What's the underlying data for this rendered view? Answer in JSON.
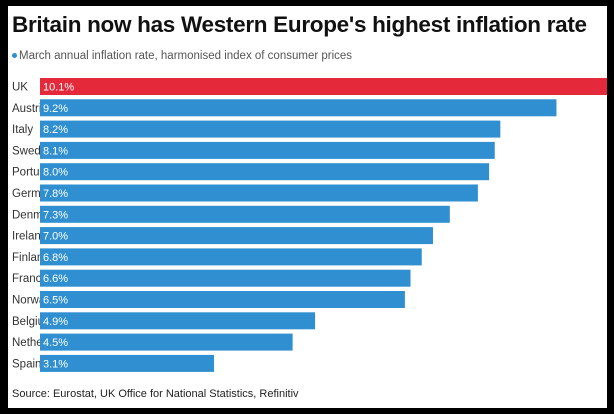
{
  "title": "Britain now has Western Europe's highest inflation rate",
  "subtitle": "March annual inflation rate, harmonised index of consumer prices",
  "source": "Source: Eurostat, UK Office for National Statistics, Refinitiv",
  "colors": {
    "highlight": "#e3293a",
    "bar": "#2f8fd0",
    "background": "#ffffff",
    "frame": "#000000"
  },
  "chart_data": {
    "type": "bar",
    "orientation": "horizontal",
    "categories": [
      "UK",
      "Austria",
      "Italy",
      "Sweden",
      "Portugal",
      "Germany",
      "Denmark",
      "Ireland",
      "Finland",
      "France",
      "Norway",
      "Belgium",
      "Netherlands",
      "Spain"
    ],
    "values": [
      10.1,
      9.2,
      8.2,
      8.1,
      8.0,
      7.8,
      7.3,
      7.0,
      6.8,
      6.6,
      6.5,
      4.9,
      4.5,
      3.1
    ],
    "data_labels": [
      "10.1%",
      "9.2%",
      "8.2%",
      "8.1%",
      "8.0%",
      "7.8%",
      "7.3%",
      "7.0%",
      "6.8%",
      "6.6%",
      "6.5%",
      "4.9%",
      "4.5%",
      "3.1%"
    ],
    "highlight_category": "UK",
    "xlim": [
      0,
      10.1
    ],
    "grid": false,
    "legend": "none"
  }
}
